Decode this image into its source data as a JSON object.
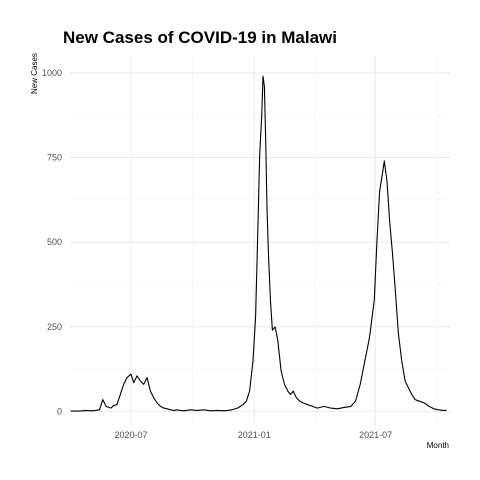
{
  "chart_data": {
    "type": "line",
    "title": "New Cases of COVID-19 in Malawi",
    "xlabel": "Month",
    "ylabel": "New Cases",
    "x_ticks": [
      "2020-07",
      "2021-01",
      "2021-07"
    ],
    "x_tick_dates": [
      "2020-07-01",
      "2021-01-01",
      "2021-07-01"
    ],
    "y_ticks": [
      0,
      250,
      500,
      750,
      1000
    ],
    "xlim": [
      "2020-04-01",
      "2021-10-20"
    ],
    "ylim": [
      -40,
      1050
    ],
    "grid": true,
    "series": [
      {
        "x": [
          "2020-04-02",
          "2020-04-15",
          "2020-04-25",
          "2020-05-05",
          "2020-05-15",
          "2020-05-20",
          "2020-05-25",
          "2020-06-01",
          "2020-06-05",
          "2020-06-10",
          "2020-06-15",
          "2020-06-20",
          "2020-06-25",
          "2020-07-01",
          "2020-07-05",
          "2020-07-10",
          "2020-07-15",
          "2020-07-20",
          "2020-07-25",
          "2020-07-30",
          "2020-08-04",
          "2020-08-09",
          "2020-08-14",
          "2020-08-19",
          "2020-08-24",
          "2020-08-29",
          "2020-09-03",
          "2020-09-08",
          "2020-09-13",
          "2020-09-18",
          "2020-09-28",
          "2020-10-08",
          "2020-10-18",
          "2020-10-28",
          "2020-11-07",
          "2020-11-17",
          "2020-11-27",
          "2020-12-07",
          "2020-12-15",
          "2020-12-20",
          "2020-12-25",
          "2020-12-30",
          "2021-01-03",
          "2021-01-06",
          "2021-01-09",
          "2021-01-12",
          "2021-01-14",
          "2021-01-16",
          "2021-01-18",
          "2021-01-20",
          "2021-01-22",
          "2021-01-25",
          "2021-01-28",
          "2021-02-01",
          "2021-02-05",
          "2021-02-10",
          "2021-02-15",
          "2021-02-20",
          "2021-02-24",
          "2021-02-28",
          "2021-03-05",
          "2021-03-10",
          "2021-03-15",
          "2021-03-22",
          "2021-03-29",
          "2021-04-05",
          "2021-04-15",
          "2021-04-25",
          "2021-05-05",
          "2021-05-15",
          "2021-05-25",
          "2021-06-01",
          "2021-06-08",
          "2021-06-15",
          "2021-06-22",
          "2021-06-29",
          "2021-07-03",
          "2021-07-07",
          "2021-07-11",
          "2021-07-14",
          "2021-07-18",
          "2021-07-22",
          "2021-07-26",
          "2021-07-30",
          "2021-08-04",
          "2021-08-09",
          "2021-08-14",
          "2021-08-19",
          "2021-08-24",
          "2021-08-29",
          "2021-09-05",
          "2021-09-12",
          "2021-09-19",
          "2021-09-26",
          "2021-10-03",
          "2021-10-10",
          "2021-10-15"
        ],
        "y": [
          1,
          1,
          3,
          2,
          5,
          35,
          15,
          10,
          18,
          20,
          50,
          80,
          100,
          110,
          85,
          105,
          90,
          80,
          100,
          60,
          40,
          25,
          15,
          10,
          8,
          5,
          3,
          5,
          3,
          2,
          5,
          3,
          5,
          2,
          3,
          2,
          4,
          10,
          20,
          30,
          60,
          150,
          280,
          520,
          760,
          870,
          990,
          960,
          800,
          600,
          470,
          330,
          240,
          250,
          210,
          120,
          80,
          60,
          50,
          60,
          40,
          30,
          25,
          20,
          15,
          10,
          15,
          10,
          8,
          12,
          15,
          30,
          80,
          150,
          220,
          330,
          500,
          650,
          700,
          740,
          680,
          560,
          470,
          370,
          230,
          150,
          90,
          70,
          50,
          35,
          30,
          25,
          15,
          8,
          5,
          3,
          3
        ]
      }
    ]
  }
}
